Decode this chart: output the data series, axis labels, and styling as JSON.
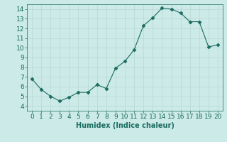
{
  "x": [
    0,
    1,
    2,
    3,
    4,
    5,
    6,
    7,
    8,
    9,
    10,
    11,
    12,
    13,
    14,
    15,
    16,
    17,
    18,
    19,
    20
  ],
  "y": [
    6.8,
    5.7,
    5.0,
    4.5,
    4.9,
    5.4,
    5.4,
    6.2,
    5.8,
    7.9,
    8.6,
    9.8,
    12.3,
    13.1,
    14.1,
    14.0,
    13.6,
    12.7,
    12.7,
    10.1,
    10.3
  ],
  "line_color": "#1a6b60",
  "marker": "D",
  "marker_size": 2.5,
  "bg_color": "#cceae7",
  "grid_color": "#b8d8d4",
  "xlabel": "Humidex (Indice chaleur)",
  "xlim": [
    -0.5,
    20.5
  ],
  "ylim": [
    3.5,
    14.5
  ],
  "xticks": [
    0,
    1,
    2,
    3,
    4,
    5,
    6,
    7,
    8,
    9,
    10,
    11,
    12,
    13,
    14,
    15,
    16,
    17,
    18,
    19,
    20
  ],
  "yticks": [
    4,
    5,
    6,
    7,
    8,
    9,
    10,
    11,
    12,
    13,
    14
  ],
  "xlabel_fontsize": 7,
  "tick_fontsize": 6.5,
  "title_color": "#1a6b60"
}
